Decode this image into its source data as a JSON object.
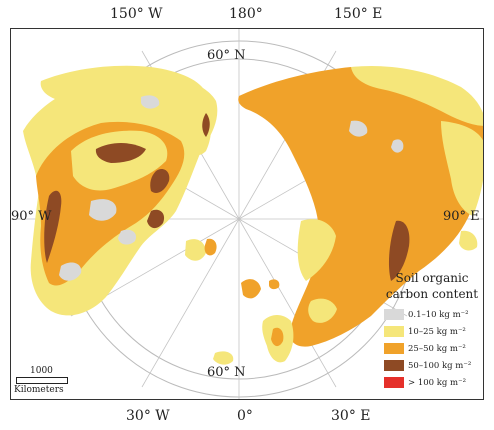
{
  "map": {
    "top_labels": [
      "150° W",
      "180°",
      "150° E"
    ],
    "bottom_labels": [
      "30° W",
      "0°",
      "30° E"
    ],
    "side_labels": {
      "left": "90° W",
      "right": "90° E"
    },
    "latitude_labels": {
      "top": "60° N",
      "bottom": "60° N"
    }
  },
  "legend": {
    "title_line1": "Soil organic",
    "title_line2": "carbon content",
    "items": [
      {
        "label": "0.1–10 kg m⁻²",
        "color": "#d9d9d9"
      },
      {
        "label": "10–25 kg m⁻²",
        "color": "#f5e67a"
      },
      {
        "label": "25–50 kg m⁻²",
        "color": "#f0a22a"
      },
      {
        "label": "50–100 kg m⁻²",
        "color": "#8e4a24"
      },
      {
        "label": "> 100 kg m⁻²",
        "color": "#e5302a"
      }
    ]
  },
  "scale_bar": {
    "value": "1000",
    "unit": "Kilometers"
  }
}
